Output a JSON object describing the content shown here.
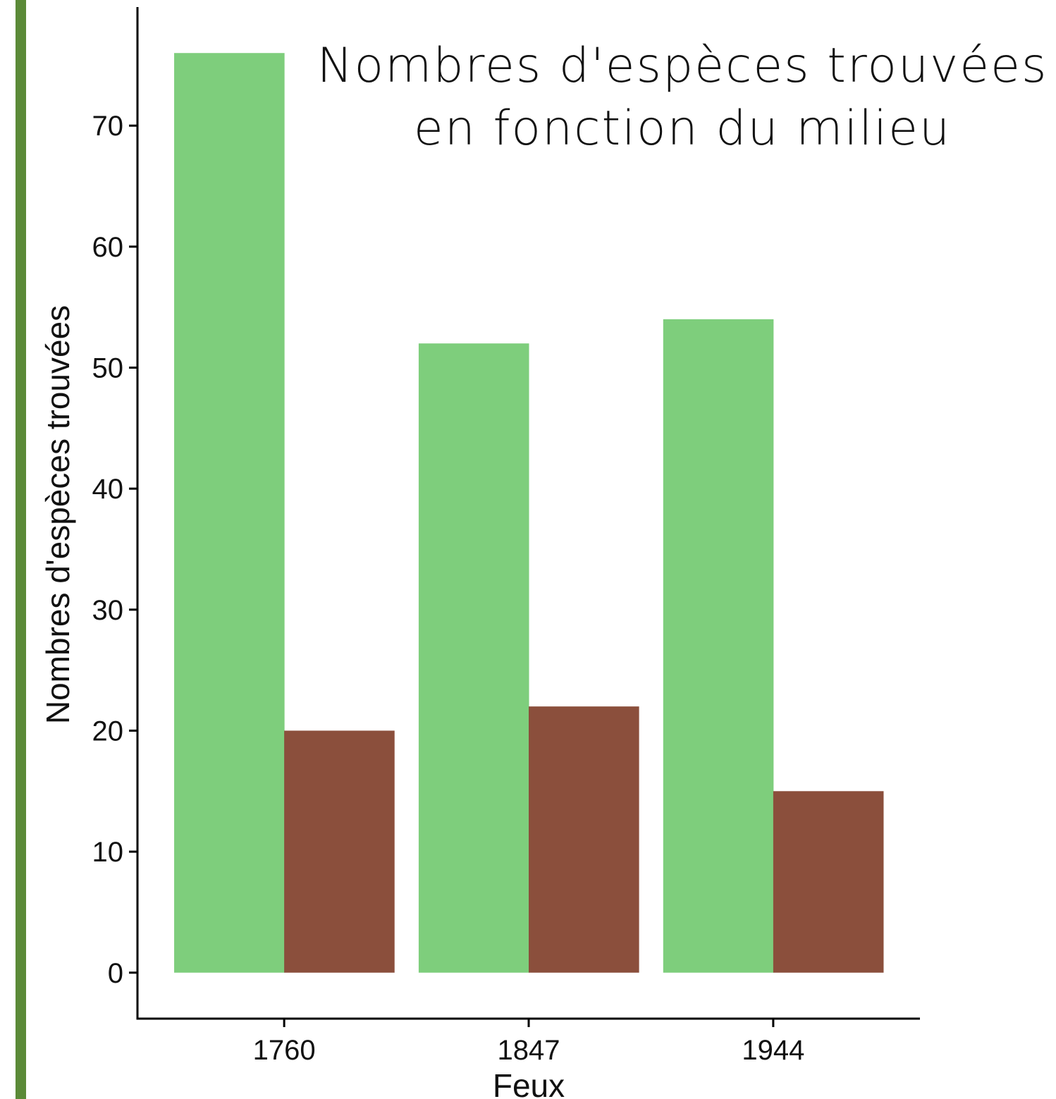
{
  "chart_data": {
    "type": "bar",
    "title": [
      "Nombres d'espèces trouvées",
      "en fonction du milieu"
    ],
    "x_label": "Feux",
    "y_label": "Nombres d'espèces trouvées",
    "categories": [
      "1760",
      "1847",
      "1944"
    ],
    "series": [
      {
        "color": "#7ece7c",
        "values": [
          76,
          52,
          54
        ]
      },
      {
        "color": "#8b4f3c",
        "values": [
          20,
          22,
          15
        ]
      }
    ],
    "ylim": [
      -3.8,
      79.8
    ],
    "yticks": [
      0,
      10,
      20,
      30,
      40,
      50,
      60,
      70
    ],
    "grid": false
  }
}
